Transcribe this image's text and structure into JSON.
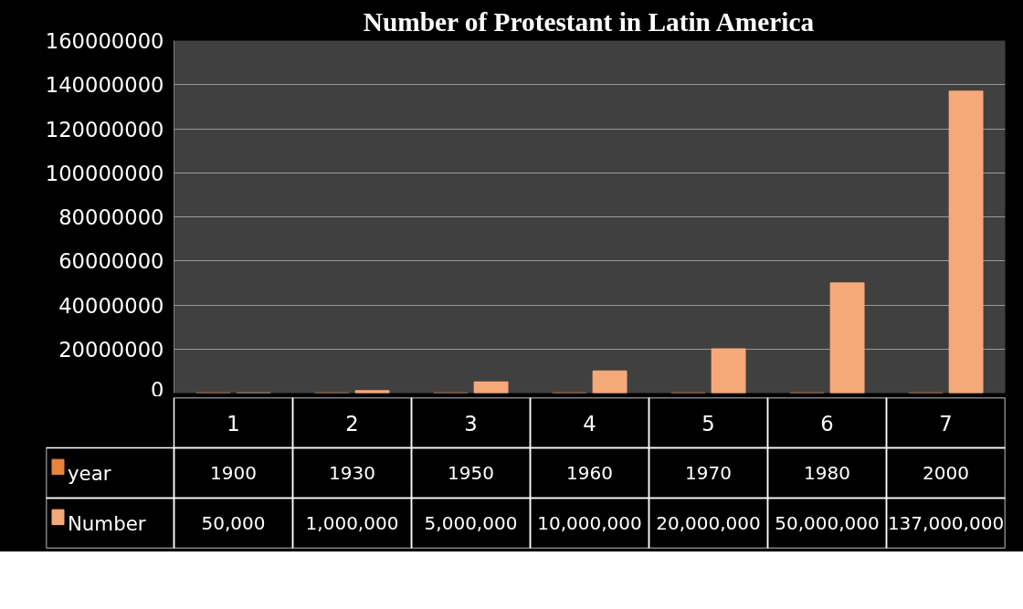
{
  "chart_data": {
    "type": "bar",
    "title": "Number of Protestant in Latin America",
    "categories": [
      "1",
      "2",
      "3",
      "4",
      "5",
      "6",
      "7"
    ],
    "series": [
      {
        "name": "year",
        "color": "#e8843c",
        "values": [
          1900,
          1930,
          1950,
          1960,
          1970,
          1980,
          2000
        ],
        "value_labels": [
          "1900",
          "1930",
          "1950",
          "1960",
          "1970",
          "1980",
          "2000"
        ]
      },
      {
        "name": "Number",
        "color": "#f5a878",
        "values": [
          50000,
          1000000,
          5000000,
          10000000,
          20000000,
          50000000,
          137000000
        ],
        "value_labels": [
          "50,000",
          "1,000,000",
          "5,000,000",
          "10,000,000",
          "20,000,000",
          "50,000,000",
          "137,000,000"
        ]
      }
    ],
    "ylim": [
      0,
      160000000
    ],
    "yticks": [
      0,
      20000000,
      40000000,
      60000000,
      80000000,
      100000000,
      120000000,
      140000000,
      160000000
    ],
    "grid": "y",
    "legend": "bottom"
  }
}
